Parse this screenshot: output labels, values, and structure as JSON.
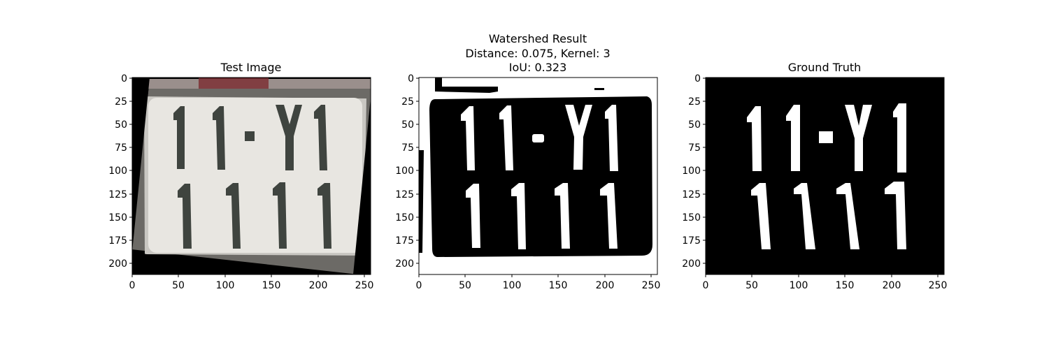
{
  "panels": [
    {
      "id": "test",
      "title_lines": [
        "Test Image"
      ],
      "x_ticks": [
        "0",
        "50",
        "100",
        "150",
        "200",
        "250"
      ],
      "y_ticks": [
        "0",
        "25",
        "50",
        "75",
        "100",
        "125",
        "150",
        "175",
        "200"
      ]
    },
    {
      "id": "watershed",
      "title_lines": [
        "Watershed Result",
        "Distance: 0.075, Kernel: 3",
        "IoU: 0.323"
      ],
      "x_ticks": [
        "0",
        "50",
        "100",
        "150",
        "200",
        "250"
      ],
      "y_ticks": [
        "0",
        "25",
        "50",
        "75",
        "100",
        "125",
        "150",
        "175",
        "200"
      ]
    },
    {
      "id": "ground-truth",
      "title_lines": [
        "Ground Truth"
      ],
      "x_ticks": [
        "0",
        "50",
        "100",
        "150",
        "200",
        "250"
      ],
      "y_ticks": [
        "0",
        "25",
        "50",
        "75",
        "100",
        "125",
        "150",
        "175",
        "200"
      ]
    }
  ],
  "plate_text": {
    "line1": "11-Y1",
    "line2": "1111"
  },
  "colors": {
    "plate_fill": "#e6e4df",
    "plate_char": "#3d423d",
    "mask_fg": "#ffffff",
    "mask_bg": "#000000"
  }
}
